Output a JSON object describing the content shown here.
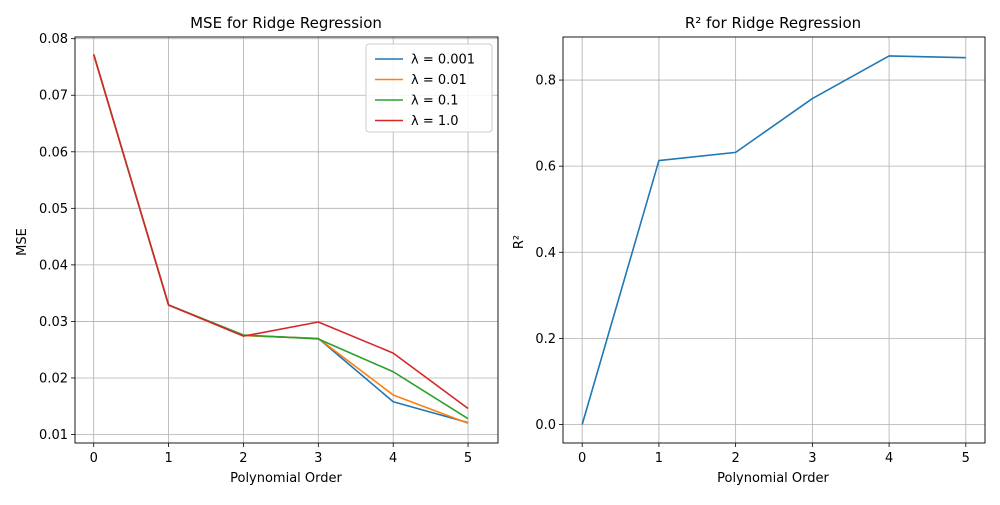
{
  "chart_data": [
    {
      "type": "line",
      "title": "MSE for Ridge Regression",
      "xlabel": "Polynomial Order",
      "ylabel": "MSE",
      "x": [
        0,
        1,
        2,
        3,
        4,
        5
      ],
      "xlim": [
        -0.25,
        5.4
      ],
      "ylim": [
        0.0085,
        0.0803
      ],
      "xticks": [
        0,
        1,
        2,
        3,
        4,
        5
      ],
      "yticks": [
        0.01,
        0.02,
        0.03,
        0.04,
        0.05,
        0.06,
        0.07,
        0.08
      ],
      "ytick_labels": [
        "0.01",
        "0.02",
        "0.03",
        "0.04",
        "0.05",
        "0.06",
        "0.07",
        "0.08"
      ],
      "grid": true,
      "legend_position": "top-right",
      "series": [
        {
          "name": "λ = 0.001",
          "color": "#1f77b4",
          "values": [
            0.0772,
            0.0329,
            0.0275,
            0.027,
            0.0158,
            0.0121
          ]
        },
        {
          "name": "λ = 0.01",
          "color": "#ff7f0e",
          "values": [
            0.0772,
            0.0329,
            0.0275,
            0.027,
            0.017,
            0.012
          ]
        },
        {
          "name": "λ = 0.1",
          "color": "#2ca02c",
          "values": [
            0.0772,
            0.0329,
            0.0276,
            0.0269,
            0.0211,
            0.0128
          ]
        },
        {
          "name": "λ = 1.0",
          "color": "#d62728",
          "values": [
            0.0772,
            0.0329,
            0.0274,
            0.0299,
            0.0244,
            0.0146
          ]
        }
      ]
    },
    {
      "type": "line",
      "title": "R² for Ridge Regression",
      "xlabel": "Polynomial Order",
      "ylabel": "R²",
      "x": [
        0,
        1,
        2,
        3,
        4,
        5
      ],
      "xlim": [
        -0.25,
        5.25
      ],
      "ylim": [
        -0.043,
        0.9
      ],
      "xticks": [
        0,
        1,
        2,
        3,
        4,
        5
      ],
      "yticks": [
        0.0,
        0.2,
        0.4,
        0.6,
        0.8
      ],
      "ytick_labels": [
        "0.0",
        "0.2",
        "0.4",
        "0.6",
        "0.8"
      ],
      "grid": true,
      "series": [
        {
          "color": "#1f77b4",
          "values": [
            0.0,
            0.613,
            0.632,
            0.757,
            0.856,
            0.852
          ]
        }
      ]
    }
  ]
}
